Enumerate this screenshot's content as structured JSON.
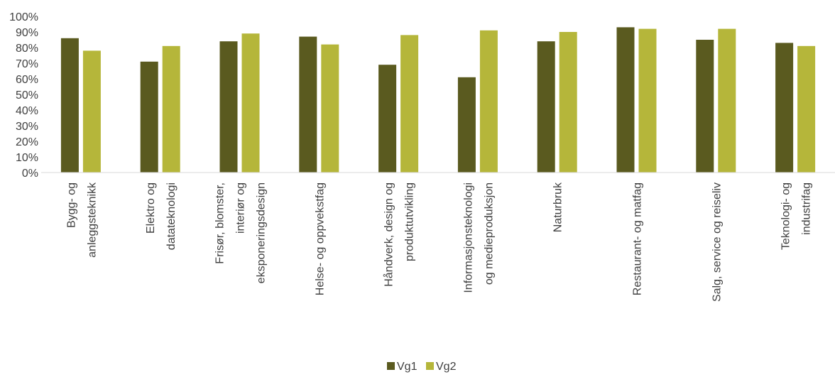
{
  "chart_data": {
    "type": "bar",
    "categories": [
      [
        "Bygg- og",
        "anleggsteknikk"
      ],
      [
        "Elektro og",
        "datateknologi"
      ],
      [
        "Frisør, blomster,",
        "interiør og",
        "eksponeringsdesign"
      ],
      [
        "Helse- og oppvekstfag"
      ],
      [
        "Håndverk, design og",
        "produktutvikling"
      ],
      [
        "Informasjonsteknologi",
        "og medieproduksjon"
      ],
      [
        "Naturbruk"
      ],
      [
        "Restaurant- og matfag"
      ],
      [
        "Salg, service og reiseliv"
      ],
      [
        "Teknologi- og",
        "industrifag"
      ]
    ],
    "series": [
      {
        "name": "Vg1",
        "color": "#5a5a1f",
        "values": [
          0.86,
          0.71,
          0.84,
          0.87,
          0.69,
          0.61,
          0.84,
          0.93,
          0.85,
          0.83
        ]
      },
      {
        "name": "Vg2",
        "color": "#b5b63a",
        "values": [
          0.78,
          0.81,
          0.89,
          0.82,
          0.88,
          0.91,
          0.9,
          0.92,
          0.92,
          0.81
        ]
      }
    ],
    "ylim": [
      0,
      1
    ],
    "yticks": [
      "0%",
      "10%",
      "20%",
      "30%",
      "40%",
      "50%",
      "60%",
      "70%",
      "80%",
      "90%",
      "100%"
    ],
    "grid": false,
    "legend": "bottom-center"
  }
}
